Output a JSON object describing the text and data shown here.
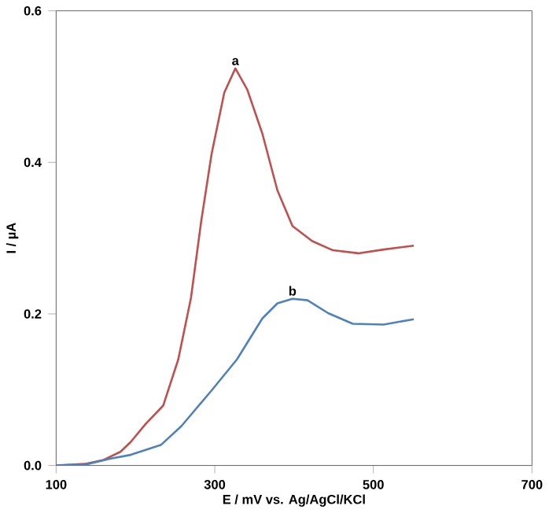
{
  "chart_data": {
    "type": "line",
    "xlabel": "E / mV vs. Ag/AgCl/KCl",
    "ylabel": "I / µA",
    "xlim": [
      100,
      700
    ],
    "xticks": [
      100,
      300,
      500,
      700
    ],
    "ylim": [
      0,
      0.6
    ],
    "yticks": [
      {
        "value": 0,
        "label": "0.0"
      },
      0.2,
      0.4,
      0.6
    ],
    "grid": false,
    "marker": "none",
    "line_style": "solid",
    "series": [
      {
        "color": "#c0504d",
        "x": [
          100,
          136,
          159,
          181,
          194,
          213,
          235,
          254,
          270,
          283,
          296,
          312,
          326,
          341,
          360,
          379,
          398,
          423,
          449,
          481,
          513,
          551
        ],
        "values": [
          0,
          0.002,
          0.007,
          0.018,
          0.031,
          0.055,
          0.079,
          0.14,
          0.221,
          0.323,
          0.411,
          0.492,
          0.524,
          0.496,
          0.438,
          0.363,
          0.316,
          0.296,
          0.284,
          0.28,
          0.285,
          0.29
        ]
      },
      {
        "color": "#4f81bd",
        "x": [
          100,
          136,
          168,
          194,
          232,
          258,
          296,
          328,
          360,
          379,
          398,
          417,
          443,
          474,
          513,
          551
        ],
        "values": [
          0,
          0.001,
          0.009,
          0.014,
          0.027,
          0.052,
          0.099,
          0.14,
          0.194,
          0.214,
          0.22,
          0.218,
          0.201,
          0.187,
          0.186,
          0.193
        ]
      }
    ],
    "annotations": [
      {
        "text": "a",
        "x": 326,
        "y": 0.524
      },
      {
        "text": "b",
        "x": 398,
        "y": 0.22
      }
    ]
  }
}
